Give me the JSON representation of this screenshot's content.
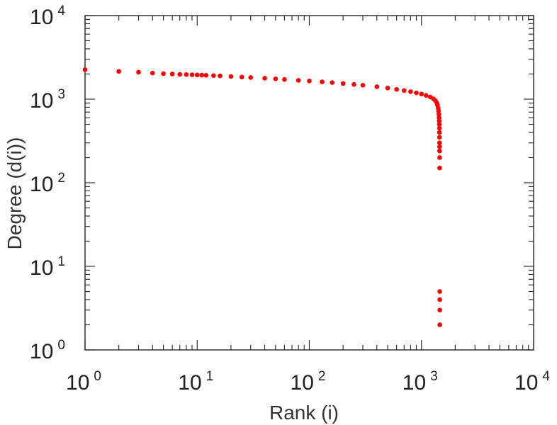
{
  "chart_data": {
    "type": "scatter",
    "xlabel": "Rank (i)",
    "ylabel": "Degree (d(i))",
    "xscale": "log",
    "yscale": "log",
    "xlim": [
      1,
      10000
    ],
    "ylim": [
      1,
      10000
    ],
    "x_ticks": [
      {
        "value": 1,
        "base": "10",
        "exp": "0"
      },
      {
        "value": 10,
        "base": "10",
        "exp": "1"
      },
      {
        "value": 100,
        "base": "10",
        "exp": "2"
      },
      {
        "value": 1000,
        "base": "10",
        "exp": "3"
      },
      {
        "value": 10000,
        "base": "10",
        "exp": "4"
      }
    ],
    "y_ticks": [
      {
        "value": 1,
        "base": "10",
        "exp": "0"
      },
      {
        "value": 10,
        "base": "10",
        "exp": "1"
      },
      {
        "value": 100,
        "base": "10",
        "exp": "2"
      },
      {
        "value": 1000,
        "base": "10",
        "exp": "3"
      },
      {
        "value": 10000,
        "base": "10",
        "exp": "4"
      }
    ],
    "grid": false,
    "marker_color": "#ff0000",
    "points": [
      [
        1,
        2250
      ],
      [
        2,
        2150
      ],
      [
        3,
        2100
      ],
      [
        4,
        2050
      ],
      [
        5,
        2020
      ],
      [
        6,
        2000
      ],
      [
        7,
        1980
      ],
      [
        8,
        1970
      ],
      [
        9,
        1960
      ],
      [
        10,
        1950
      ],
      [
        11,
        1940
      ],
      [
        12,
        1930
      ],
      [
        14,
        1915
      ],
      [
        16,
        1900
      ],
      [
        20,
        1870
      ],
      [
        25,
        1840
      ],
      [
        30,
        1815
      ],
      [
        40,
        1780
      ],
      [
        50,
        1750
      ],
      [
        60,
        1720
      ],
      [
        80,
        1680
      ],
      [
        100,
        1650
      ],
      [
        130,
        1610
      ],
      [
        160,
        1580
      ],
      [
        200,
        1540
      ],
      [
        250,
        1500
      ],
      [
        300,
        1470
      ],
      [
        400,
        1410
      ],
      [
        500,
        1360
      ],
      [
        600,
        1310
      ],
      [
        700,
        1270
      ],
      [
        800,
        1230
      ],
      [
        900,
        1190
      ],
      [
        1000,
        1150
      ],
      [
        1100,
        1110
      ],
      [
        1200,
        1060
      ],
      [
        1280,
        1010
      ],
      [
        1330,
        960
      ],
      [
        1370,
        900
      ],
      [
        1390,
        850
      ],
      [
        1410,
        780
      ],
      [
        1420,
        720
      ],
      [
        1430,
        660
      ],
      [
        1435,
        600
      ],
      [
        1440,
        550
      ],
      [
        1443,
        500
      ],
      [
        1445,
        450
      ],
      [
        1447,
        400
      ],
      [
        1448,
        350
      ],
      [
        1449,
        300
      ],
      [
        1450,
        270
      ],
      [
        1451,
        240
      ],
      [
        1452,
        200
      ],
      [
        1453,
        150
      ],
      [
        1455,
        5
      ],
      [
        1456,
        4
      ],
      [
        1457,
        3
      ],
      [
        1458,
        2
      ]
    ]
  }
}
